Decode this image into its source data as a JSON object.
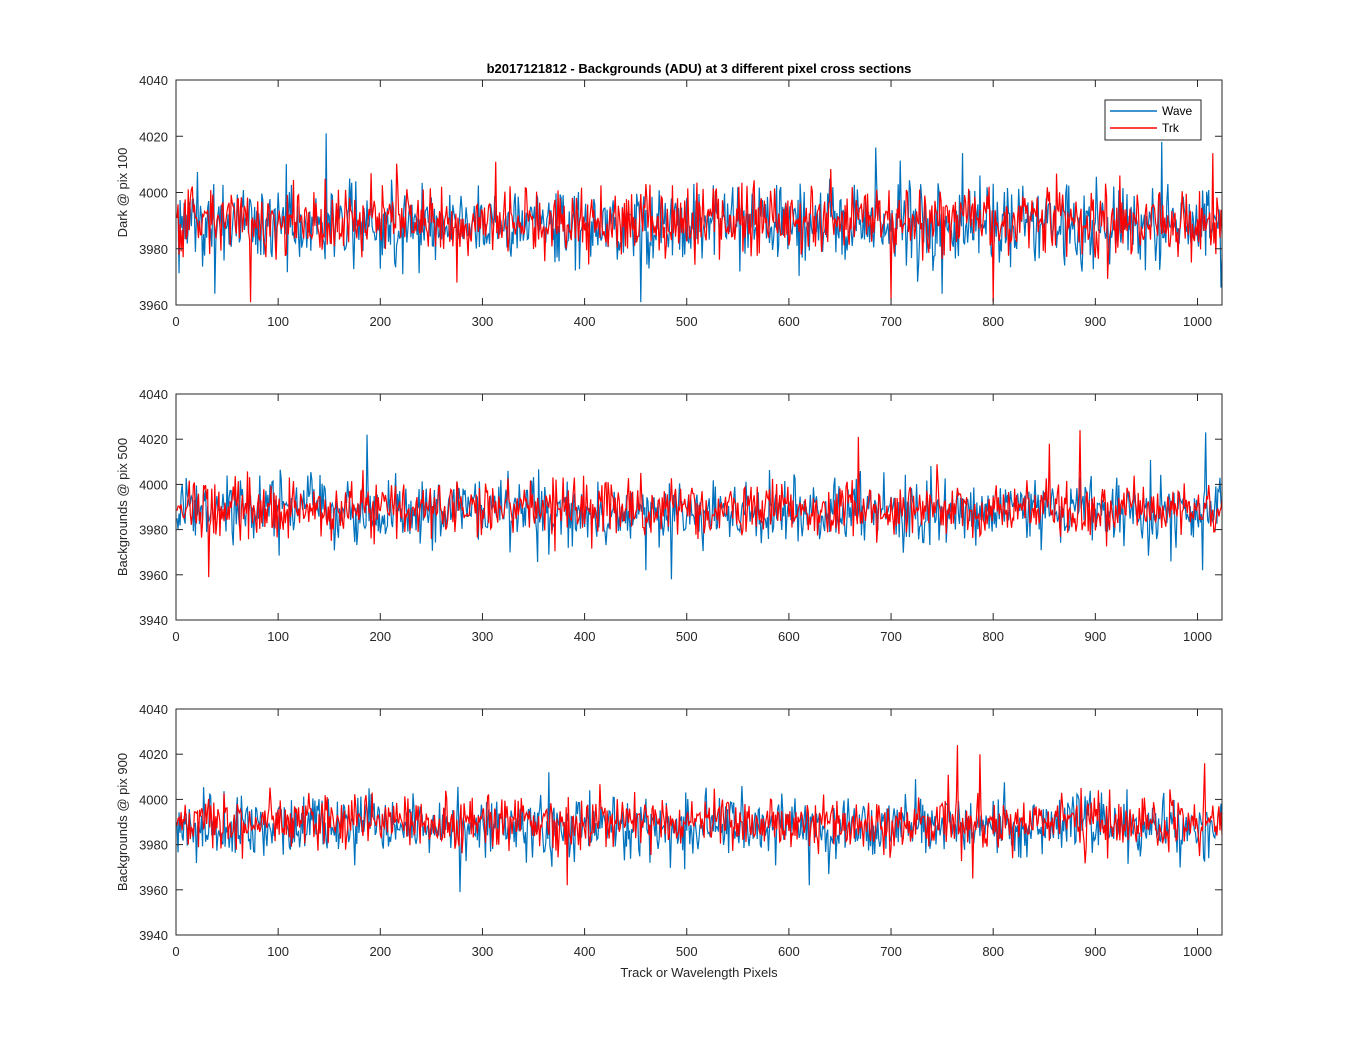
{
  "figure": {
    "title": "b2017121812 - Backgrounds (ADU) at 3 different pixel cross sections",
    "xlabel": "Track or Wavelength Pixels",
    "colors": {
      "Wave": "#0072BD",
      "Trk": "#FF0000",
      "axis": "#262626"
    }
  },
  "chart_data": [
    {
      "type": "line",
      "xlabel": "",
      "ylabel": "Dark @ pix 100",
      "xlim": [
        0,
        1024
      ],
      "ylim": [
        3960,
        4040
      ],
      "xticks": [
        0,
        100,
        200,
        300,
        400,
        500,
        600,
        700,
        800,
        900,
        1000
      ],
      "yticks": [
        3960,
        3980,
        4000,
        4020,
        4040
      ],
      "grid": false,
      "legend": {
        "placement": "top-right",
        "entries": [
          "Wave",
          "Trk"
        ]
      },
      "series": [
        {
          "name": "Wave",
          "color": "#0072BD",
          "n_points": 1024,
          "x_start": 1,
          "mean": 3989,
          "std": 7,
          "peaks": [
            [
              147,
              4021
            ],
            [
              685,
              4016
            ],
            [
              770,
              4014
            ],
            [
              965,
              4018
            ]
          ],
          "dips": [
            [
              38,
              3964
            ],
            [
              455,
              3961
            ],
            [
              750,
              3964
            ]
          ]
        },
        {
          "name": "Trk",
          "color": "#FF0000",
          "n_points": 1024,
          "x_start": 1,
          "mean": 3990,
          "std": 6,
          "peaks": [
            [
              1015,
              4014
            ]
          ],
          "dips": [
            [
              73,
              3961
            ],
            [
              700,
              3962
            ],
            [
              800,
              3961
            ]
          ]
        }
      ]
    },
    {
      "type": "line",
      "xlabel": "",
      "ylabel": "Backgrounds @ pix 500",
      "xlim": [
        0,
        1024
      ],
      "ylim": [
        3940,
        4040
      ],
      "xticks": [
        0,
        100,
        200,
        300,
        400,
        500,
        600,
        700,
        800,
        900,
        1000
      ],
      "yticks": [
        3940,
        3960,
        3980,
        4000,
        4020,
        4040
      ],
      "grid": false,
      "series": [
        {
          "name": "Wave",
          "color": "#0072BD",
          "n_points": 1024,
          "x_start": 1,
          "mean": 3988,
          "std": 7,
          "peaks": [
            [
              187,
              4022
            ],
            [
              1008,
              4023
            ]
          ],
          "dips": [
            [
              485,
              3958
            ],
            [
              460,
              3962
            ],
            [
              1005,
              3962
            ]
          ]
        },
        {
          "name": "Trk",
          "color": "#FF0000",
          "n_points": 1024,
          "x_start": 1,
          "mean": 3989,
          "std": 6,
          "peaks": [
            [
              668,
              4021
            ],
            [
              885,
              4024
            ],
            [
              855,
              4018
            ]
          ],
          "dips": [
            [
              32,
              3959
            ]
          ]
        }
      ]
    },
    {
      "type": "line",
      "xlabel": "Track or Wavelength Pixels",
      "ylabel": "Backgrounds @ pix 900",
      "xlim": [
        0,
        1024
      ],
      "ylim": [
        3940,
        4040
      ],
      "xticks": [
        0,
        100,
        200,
        300,
        400,
        500,
        600,
        700,
        800,
        900,
        1000
      ],
      "yticks": [
        3940,
        3960,
        3980,
        4000,
        4020,
        4040
      ],
      "grid": false,
      "series": [
        {
          "name": "Wave",
          "color": "#0072BD",
          "n_points": 1024,
          "x_start": 1,
          "mean": 3988,
          "std": 7,
          "peaks": [
            [
              365,
              4012
            ]
          ],
          "dips": [
            [
              278,
              3959
            ],
            [
              620,
              3962
            ]
          ]
        },
        {
          "name": "Trk",
          "color": "#FF0000",
          "n_points": 1024,
          "x_start": 1,
          "mean": 3990,
          "std": 6,
          "peaks": [
            [
              765,
              4024
            ],
            [
              787,
              4020
            ],
            [
              1007,
              4016
            ]
          ],
          "dips": [
            [
              383,
              3962
            ],
            [
              780,
              3965
            ]
          ]
        }
      ]
    }
  ]
}
